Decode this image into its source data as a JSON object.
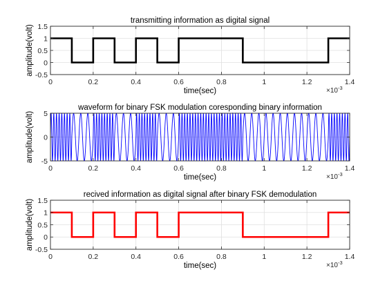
{
  "chart_data": [
    {
      "type": "line",
      "title": "transmitting information as digital signal",
      "xlabel": "time(sec)",
      "ylabel": "amplitude(volt)",
      "xlim": [
        0,
        0.0014
      ],
      "ylim": [
        -0.5,
        1.5
      ],
      "x_ticks": [
        0,
        0.0002,
        0.0004,
        0.0006,
        0.0008,
        0.001,
        0.0012,
        0.0014
      ],
      "x_tick_labels": [
        "0",
        "0.2",
        "0.4",
        "0.6",
        "0.8",
        "1",
        "1.2",
        "1.4"
      ],
      "y_ticks": [
        -0.5,
        0,
        0.5,
        1,
        1.5
      ],
      "y_tick_labels": [
        "-0.5",
        "0",
        "0.5",
        "1",
        "1.5"
      ],
      "x_exponent_base": "×10",
      "x_exponent": "-3",
      "grid": true,
      "color": "#000000",
      "bit_duration": 0.0001,
      "bits": [
        1,
        0,
        1,
        0,
        1,
        0,
        1,
        1,
        1,
        0,
        0,
        0,
        0,
        1
      ]
    },
    {
      "type": "line",
      "title": "waveform for binary FSK modulation coresponding binary information",
      "xlabel": "time(sec)",
      "ylabel": "amplitude(volt)",
      "xlim": [
        0,
        0.0014
      ],
      "ylim": [
        -5,
        5
      ],
      "x_ticks": [
        0,
        0.0002,
        0.0004,
        0.0006,
        0.0008,
        0.001,
        0.0012,
        0.0014
      ],
      "x_tick_labels": [
        "0",
        "0.2",
        "0.4",
        "0.6",
        "0.8",
        "1",
        "1.2",
        "1.4"
      ],
      "y_ticks": [
        -5,
        0,
        5
      ],
      "y_tick_labels": [
        "-5",
        "0",
        "5"
      ],
      "x_exponent_base": "×10",
      "x_exponent": "-3",
      "grid": true,
      "color": "#0000ff",
      "amplitude": 5,
      "bit_duration": 0.0001,
      "carrier_freq_bit1": 80000,
      "carrier_freq_bit0": 30000,
      "bits": [
        1,
        0,
        1,
        0,
        1,
        0,
        1,
        1,
        1,
        0,
        0,
        0,
        0,
        1
      ]
    },
    {
      "type": "line",
      "title": "recived information as digital signal after binary FSK demodulation",
      "xlabel": "time(sec)",
      "ylabel": "amplitude(volt)",
      "xlim": [
        0,
        0.0014
      ],
      "ylim": [
        -0.5,
        1.5
      ],
      "x_ticks": [
        0,
        0.0002,
        0.0004,
        0.0006,
        0.0008,
        0.001,
        0.0012,
        0.0014
      ],
      "x_tick_labels": [
        "0",
        "0.2",
        "0.4",
        "0.6",
        "0.8",
        "1",
        "1.2",
        "1.4"
      ],
      "y_ticks": [
        -0.5,
        0,
        0.5,
        1,
        1.5
      ],
      "y_tick_labels": [
        "-0.5",
        "0",
        "0.5",
        "1",
        "1.5"
      ],
      "x_exponent_base": "×10",
      "x_exponent": "-3",
      "grid": true,
      "color": "#ff0000",
      "bit_duration": 0.0001,
      "bits": [
        1,
        0,
        1,
        0,
        1,
        0,
        1,
        1,
        1,
        0,
        0,
        0,
        0,
        1
      ]
    }
  ]
}
